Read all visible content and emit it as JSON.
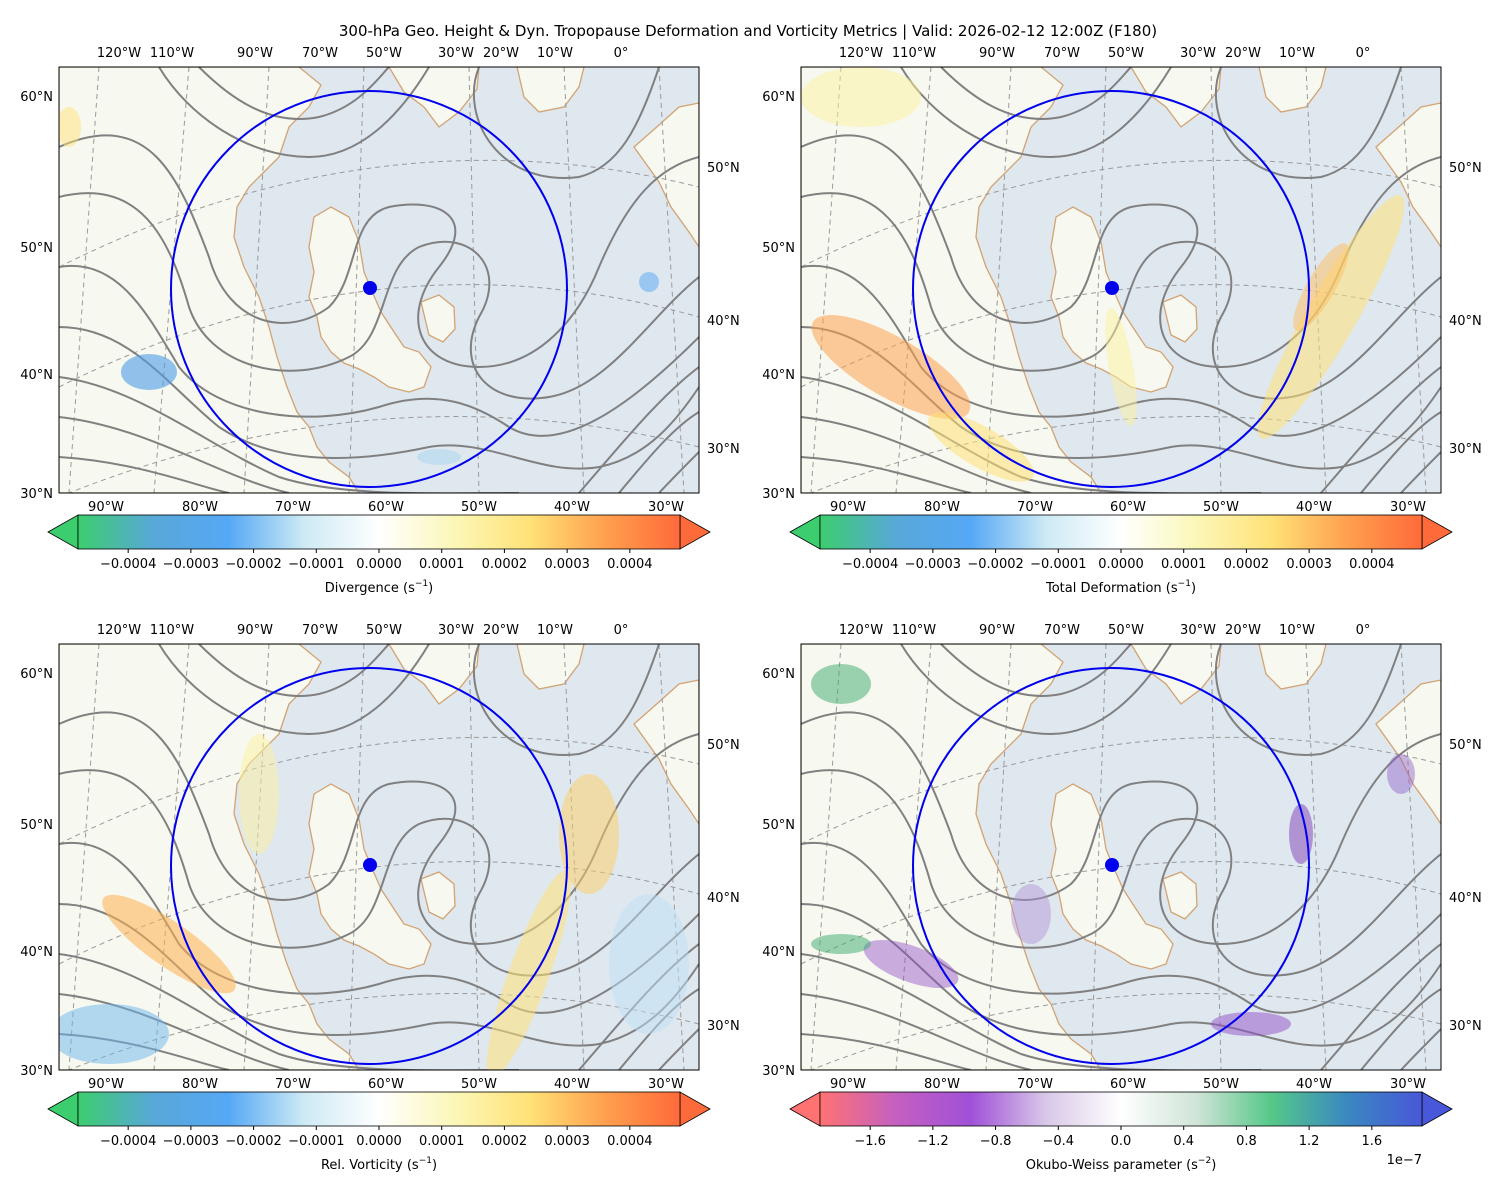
{
  "figure": {
    "title": "300-hPa Geo. Height & Dyn. Tropopause Deformation and Vorticity Metrics |  Valid: 2026-02-12 12:00Z (F180)"
  },
  "colors": {
    "circle": "#0000ee",
    "marker": "#0000ee",
    "coast": "#d2a373",
    "height_contour": "#808080",
    "graticule": "#9a9a9a",
    "land": "#f7f8ef",
    "ocean": "#dfe7ef"
  },
  "axis_labels": {
    "top_lon": [
      "120°W",
      "110°W",
      "90°W",
      "70°W",
      "50°W",
      "30°W",
      "20°W",
      "10°W",
      "0°"
    ],
    "left_lat": [
      "60°N",
      "50°N",
      "40°N",
      "30°N"
    ],
    "right_lat": [
      "50°N",
      "40°N",
      "30°N"
    ],
    "bottom_lon": [
      "90°W",
      "80°W",
      "70°W",
      "60°W",
      "50°W",
      "40°W",
      "30°W"
    ]
  },
  "panels": [
    {
      "id": "divergence",
      "colorbar": {
        "label": "Divergence (s",
        "label_exp": "−1",
        "ticks": [
          "−0.0004",
          "−0.0003",
          "−0.0002",
          "−0.0001",
          "0.0000",
          "0.0001",
          "0.0002",
          "0.0003",
          "0.0004"
        ],
        "tick_values": [
          -0.0004,
          -0.0003,
          -0.0002,
          -0.0001,
          0.0,
          0.0001,
          0.0002,
          0.0003,
          0.0004
        ],
        "range": [
          -0.00048,
          0.00048
        ],
        "stops": [
          "#3ccd6e",
          "#58a8d8",
          "#55a8f5",
          "#cdeaf4",
          "#ffffff",
          "#fbf7b8",
          "#ffe277",
          "#ffa04e",
          "#ff6a3a"
        ],
        "offset_text": ""
      }
    },
    {
      "id": "deformation",
      "colorbar": {
        "label": "Total Deformation (s",
        "label_exp": "−1",
        "ticks": [
          "−0.0004",
          "−0.0003",
          "−0.0002",
          "−0.0001",
          "0.0000",
          "0.0001",
          "0.0002",
          "0.0003",
          "0.0004"
        ],
        "tick_values": [
          -0.0004,
          -0.0003,
          -0.0002,
          -0.0001,
          0.0,
          0.0001,
          0.0002,
          0.0003,
          0.0004
        ],
        "range": [
          -0.00048,
          0.00048
        ],
        "stops": [
          "#3ccd6e",
          "#58a8d8",
          "#55a8f5",
          "#cdeaf4",
          "#ffffff",
          "#fbf7b8",
          "#ffe277",
          "#ffa04e",
          "#ff6a3a"
        ],
        "offset_text": ""
      }
    },
    {
      "id": "vorticity",
      "colorbar": {
        "label": "Rel. Vorticity (s",
        "label_exp": "−1",
        "ticks": [
          "−0.0004",
          "−0.0003",
          "−0.0002",
          "−0.0001",
          "0.0000",
          "0.0001",
          "0.0002",
          "0.0003",
          "0.0004"
        ],
        "tick_values": [
          -0.0004,
          -0.0003,
          -0.0002,
          -0.0001,
          0.0,
          0.0001,
          0.0002,
          0.0003,
          0.0004
        ],
        "range": [
          -0.00048,
          0.00048
        ],
        "stops": [
          "#3ccd6e",
          "#58a8d8",
          "#55a8f5",
          "#cdeaf4",
          "#ffffff",
          "#fbf7b8",
          "#ffe277",
          "#ffa04e",
          "#ff6a3a"
        ],
        "offset_text": ""
      }
    },
    {
      "id": "okubo_weiss",
      "colorbar": {
        "label": "Okubo-Weiss parameter (s",
        "label_exp": "−2",
        "ticks": [
          "−1.6",
          "−1.2",
          "−0.8",
          "−0.4",
          "0.0",
          "0.4",
          "0.8",
          "1.2",
          "1.6"
        ],
        "tick_values": [
          -1.6,
          -1.2,
          -0.8,
          -0.4,
          0.0,
          0.4,
          0.8,
          1.2,
          1.6
        ],
        "range": [
          -1.92,
          1.92
        ],
        "stops": [
          "#ff7272",
          "#c560c0",
          "#a050d8",
          "#d8c8e8",
          "#ffffff",
          "#d0e4d8",
          "#55c888",
          "#3a88c0",
          "#4858d8"
        ],
        "offset_text": "1e−7"
      }
    }
  ],
  "center_marker": {
    "name": "Newfoundland center point"
  },
  "height_contours": {
    "name": "300-hPa geopotential height"
  }
}
